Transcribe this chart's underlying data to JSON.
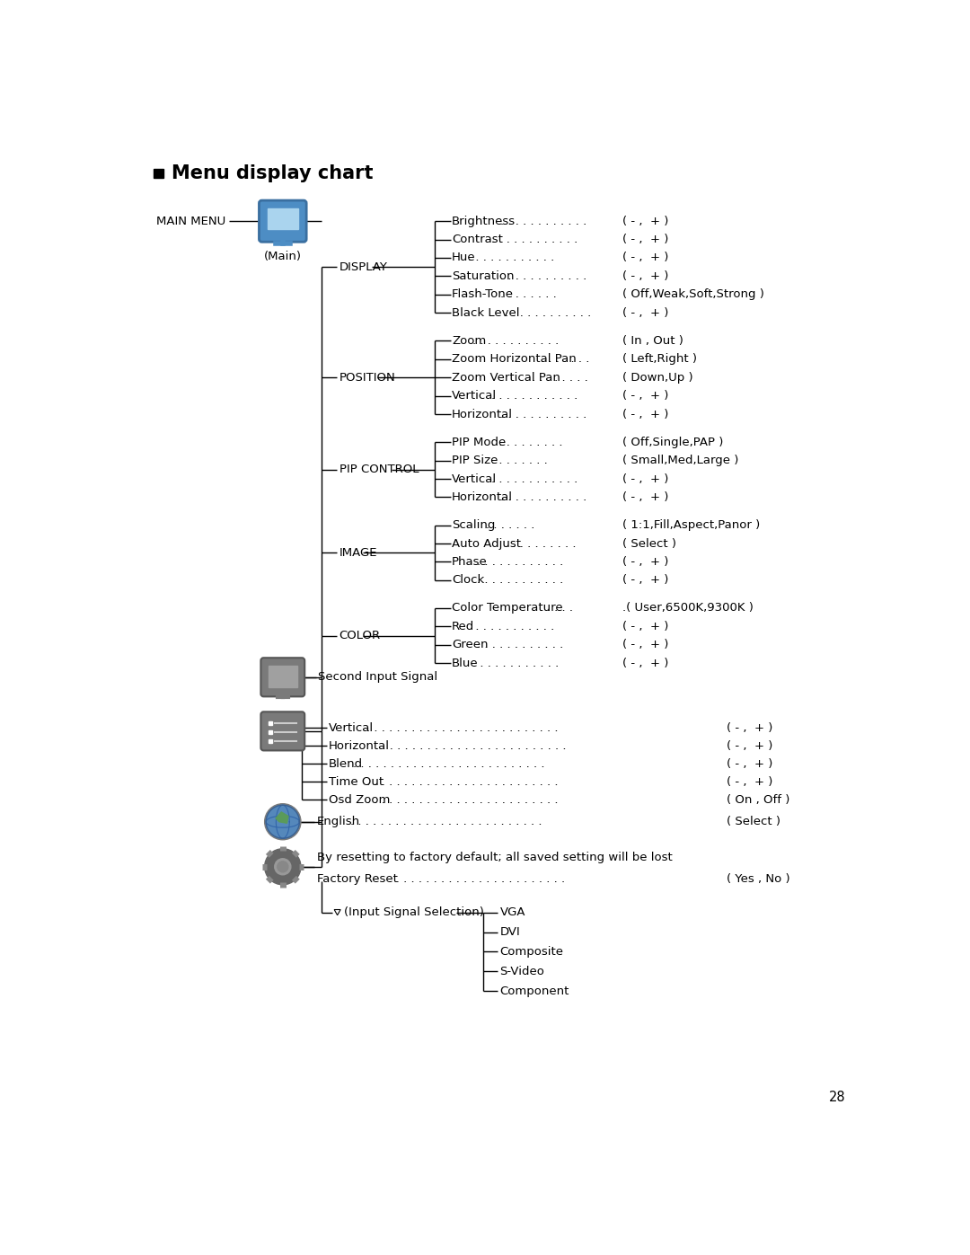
{
  "title": "Menu display chart",
  "page_number": "28",
  "bg_color": "#ffffff",
  "text_color": "#000000",
  "line_color": "#000000",
  "main_menu_label": "MAIN MENU",
  "main_icon_label": "(Main)",
  "level1_labels": [
    "DISPLAY",
    "POSITION",
    "PIP CONTROL",
    "IMAGE",
    "COLOR"
  ],
  "level2_items": [
    {
      "label": "Brightness",
      "dots": ". . . . . . . . . . . .",
      "value": "( - ,  + )",
      "group": 0
    },
    {
      "label": "Contrast",
      "dots": ". . . . . . . . . . . .",
      "value": "( - ,  + )",
      "group": 0
    },
    {
      "label": "Hue",
      "dots": ". . . . . . . . . . . .",
      "value": "( - ,  + )",
      "group": 0
    },
    {
      "label": "Saturation",
      "dots": ". . . . . . . . . . . .",
      "value": "( - ,  + )",
      "group": 0
    },
    {
      "label": "Flash-Tone",
      "dots": ". . . . . . . . ",
      "value": "( Off,Weak,Soft,Strong )",
      "group": 0
    },
    {
      "label": "Black Level",
      "dots": ". . . . . . . . . . . .",
      "value": "( - ,  + )",
      "group": 0
    },
    {
      "label": "Zoom",
      "dots": ". . . . . . . . . . . .",
      "value": "( In , Out )",
      "group": 1
    },
    {
      "label": "Zoom Horizontal Pan",
      "dots": ". . . . . . . ",
      "value": "( Left,Right )",
      "group": 1
    },
    {
      "label": "Zoom Vertical Pan",
      "dots": ". . . . . . . . ",
      "value": "( Down,Up )",
      "group": 1
    },
    {
      "label": "Vertical",
      "dots": ". . . . . . . . . . . .",
      "value": "( - ,  + )",
      "group": 1
    },
    {
      "label": "Horizontal",
      "dots": ". . . . . . . . . . . .",
      "value": "( - ,  + )",
      "group": 1
    },
    {
      "label": "PIP Mode",
      "dots": ". . . . . . . . . . ",
      "value": "( Off,Single,PAP )",
      "group": 2
    },
    {
      "label": "PIP Size",
      "dots": ". . . . . . . . ",
      "value": "( Small,Med,Large )",
      "group": 2
    },
    {
      "label": "Vertical",
      "dots": ". . . . . . . . . . . .",
      "value": "( - ,  + )",
      "group": 2
    },
    {
      "label": "Horizontal",
      "dots": ". . . . . . . . . . . .",
      "value": "( - ,  + )",
      "group": 2
    },
    {
      "label": "Scaling",
      "dots": ". . . . . . . ",
      "value": "( 1:1,Fill,Aspect,Panor )",
      "group": 3
    },
    {
      "label": "Auto Adjust",
      "dots": ". . . . . . . . . . ",
      "value": "( Select )",
      "group": 3
    },
    {
      "label": "Phase",
      "dots": ". . . . . . . . . . . .",
      "value": "( - ,  + )",
      "group": 3
    },
    {
      "label": "Clock",
      "dots": ". . . . . . . . . . . .",
      "value": "( - ,  + )",
      "group": 3
    },
    {
      "label": "Color Temperature",
      "dots": ". . . . . . ",
      "value": ".( User,6500K,9300K )",
      "group": 4
    },
    {
      "label": "Red",
      "dots": ". . . . . . . . . . . .",
      "value": "( - ,  + )",
      "group": 4
    },
    {
      "label": "Green",
      "dots": ". . . . . . . . . . . .",
      "value": "( - ,  + )",
      "group": 4
    },
    {
      "label": "Blue",
      "dots": ". . . . . . . . . . . .",
      "value": "( - ,  + )",
      "group": 4
    }
  ],
  "icon2_label": "Second Input Signal",
  "icon3_items": [
    {
      "label": "Vertical",
      "dots": ". . . . . . . . . . . . . . . . . . . . . . . . . .",
      "value": "( - ,  + )"
    },
    {
      "label": "Horizontal",
      "dots": ". . . . . . . . . . . . . . . . . . . . . . . . . .",
      "value": "( - ,  + )"
    },
    {
      "label": "Blend",
      "dots": ". . . . . . . . . . . . . . . . . . . . . . . . . .",
      "value": "( - ,  + )"
    },
    {
      "label": "Time Out",
      "dots": ". . . . . . . . . . . . . . . . . . . . . . . . . .",
      "value": "( - ,  + )"
    },
    {
      "label": "Osd Zoom",
      "dots": ". . . . . . . . . . . . . . . . . . . . . . . . . .",
      "value": "( On , Off )"
    }
  ],
  "icon4_item": {
    "label": "English",
    "dots": ". . . . . . . . . . . . . . . . . . . . . . . . . .",
    "value": "( Select )"
  },
  "icon5_text": "By resetting to factory default; all saved setting will be lost",
  "factory_reset": {
    "label": "Factory Reset",
    "dots": ". . . . . . . . . . . . . . . . . . . . . . . . .",
    "value": "( Yes , No )"
  },
  "input_signal_label": "(Input Signal Selection)",
  "input_signals": [
    "VGA",
    "DVI",
    "Composite",
    "S-Video",
    "Component"
  ],
  "icon1_color": "#4d8dc4",
  "icon1_border": "#3a6fa0",
  "icon_gray": "#7a7a7a",
  "icon_gray_border": "#555555",
  "icon_globe_blue": "#4d8dc4"
}
